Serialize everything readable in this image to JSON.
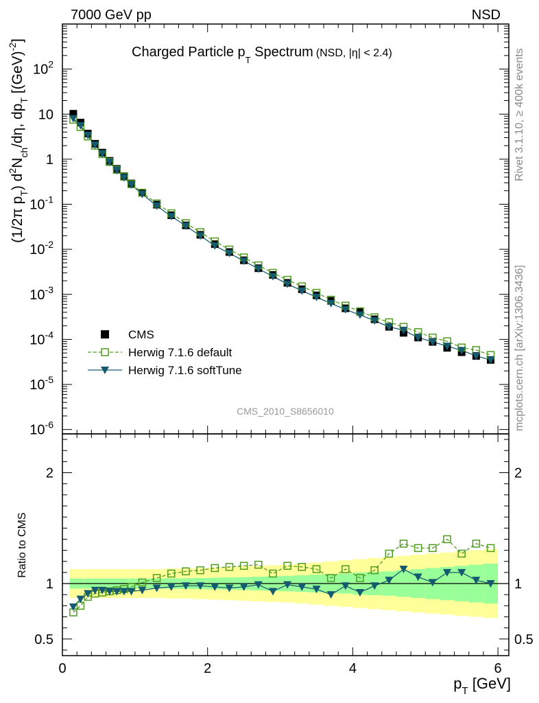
{
  "header": {
    "left": "7000 GeV pp",
    "right": "NSD"
  },
  "title": {
    "main": "Charged Particle p",
    "main_sub": "T",
    "main_tail": " Spectrum",
    "qualifier": "(NSD, |η| < 2.4)"
  },
  "side_labels": {
    "rivet": "Rivet 3.1.10, ≥ 400k events",
    "mcplots": "mcplots.cern.ch [arXiv:1306.3436]"
  },
  "analysis_id": "CMS_2010_S8656010",
  "colors": {
    "cms": "#000000",
    "herwig_default": "#4f9a1f",
    "herwig_softtune": "#165a70",
    "band_inner": "#99ff99",
    "band_outer": "#ffff99"
  },
  "chart_data": [
    {
      "type": "scatter",
      "panel": "main",
      "ylabel": "(1/2π p_T) d²N_ch/dη, dp_T [(GeV)⁻²]",
      "ylabel_parts": [
        "(1/2π p",
        "T",
        ") d",
        "2",
        "N",
        "ch",
        "/dη, dp",
        "T",
        " [(GeV)",
        "-2",
        "]"
      ],
      "xlabel": "",
      "yscale": "log",
      "xlim": [
        0,
        6.15
      ],
      "ylim": [
        8e-07,
        1000
      ],
      "y_ticks": [
        {
          "v": 1e-06,
          "label": "10",
          "exp": "-6"
        },
        {
          "v": 1e-05,
          "label": "10",
          "exp": "-5"
        },
        {
          "v": 0.0001,
          "label": "10",
          "exp": "-4"
        },
        {
          "v": 0.001,
          "label": "10",
          "exp": "-3"
        },
        {
          "v": 0.01,
          "label": "10",
          "exp": "-2"
        },
        {
          "v": 0.1,
          "label": "10",
          "exp": "-1"
        },
        {
          "v": 1,
          "label": "1",
          "exp": ""
        },
        {
          "v": 10,
          "label": "10",
          "exp": ""
        },
        {
          "v": 100,
          "label": "10",
          "exp": "2"
        }
      ],
      "legend": {
        "position": "bottom-left",
        "entries": [
          "CMS",
          "Herwig 7.1.6 default",
          "Herwig 7.1.6 softTune"
        ]
      },
      "x": [
        0.15,
        0.25,
        0.35,
        0.45,
        0.55,
        0.65,
        0.75,
        0.85,
        0.95,
        1.1,
        1.3,
        1.5,
        1.7,
        1.9,
        2.1,
        2.3,
        2.5,
        2.7,
        2.9,
        3.1,
        3.3,
        3.5,
        3.7,
        3.9,
        4.1,
        4.3,
        4.5,
        4.7,
        4.9,
        5.1,
        5.3,
        5.5,
        5.7,
        5.9
      ],
      "series": [
        {
          "name": "CMS",
          "marker": "filled-square",
          "values": [
            10.2,
            6.5,
            3.7,
            2.2,
            1.4,
            0.92,
            0.61,
            0.42,
            0.29,
            0.18,
            0.098,
            0.057,
            0.034,
            0.021,
            0.013,
            0.0087,
            0.0057,
            0.0038,
            0.0027,
            0.0018,
            0.0013,
            0.00095,
            0.00072,
            0.00049,
            0.00041,
            0.00028,
            0.00019,
            0.00014,
            0.00011,
            8.8e-05,
            6.5e-05,
            5.2e-05,
            4.3e-05,
            3.5e-05
          ]
        },
        {
          "name": "Herwig 7.1.6 default",
          "marker": "open-square",
          "line": "dashed",
          "values": [
            7.5,
            5.2,
            3.2,
            2.0,
            1.3,
            0.87,
            0.58,
            0.41,
            0.28,
            0.18,
            0.104,
            0.063,
            0.038,
            0.024,
            0.015,
            0.0099,
            0.0066,
            0.0044,
            0.003,
            0.0021,
            0.0015,
            0.00108,
            0.00076,
            0.00056,
            0.00042,
            0.00031,
            0.00024,
            0.00019,
            0.000145,
            0.00011,
            9.1e-05,
            6.6e-05,
            5.8e-05,
            4.5e-05
          ]
        },
        {
          "name": "Herwig 7.1.6 softTune",
          "marker": "filled-triangle-down",
          "line": "solid",
          "values": [
            8.0,
            5.6,
            3.4,
            2.07,
            1.32,
            0.86,
            0.57,
            0.39,
            0.27,
            0.168,
            0.092,
            0.054,
            0.033,
            0.02,
            0.012,
            0.0082,
            0.0055,
            0.0037,
            0.0025,
            0.0017,
            0.0012,
            0.00087,
            0.00063,
            0.00046,
            0.00035,
            0.00026,
            0.00019,
            0.00016,
            0.00011,
            8.8e-05,
            7.1e-05,
            5.7e-05,
            4.3e-05,
            3.5e-05
          ]
        }
      ]
    },
    {
      "type": "line",
      "panel": "ratio",
      "ylabel": "Ratio to CMS",
      "xlabel": "p_T [GeV]",
      "xlabel_main": "p",
      "xlabel_sub": "T",
      "xlabel_tail": " [GeV]",
      "ylim": [
        0.35,
        2.35
      ],
      "xlim": [
        0,
        6.15
      ],
      "x_ticks": [
        0,
        2,
        4,
        6
      ],
      "y_ticks": [
        0.5,
        1,
        2
      ],
      "reference": 1,
      "x": [
        0.15,
        0.25,
        0.35,
        0.45,
        0.55,
        0.65,
        0.75,
        0.85,
        0.95,
        1.1,
        1.3,
        1.5,
        1.7,
        1.9,
        2.1,
        2.3,
        2.5,
        2.7,
        2.9,
        3.1,
        3.3,
        3.5,
        3.7,
        3.9,
        4.1,
        4.3,
        4.5,
        4.7,
        4.9,
        5.1,
        5.3,
        5.5,
        5.7,
        5.9
      ],
      "band": {
        "x_edges": [
          0.1,
          0.2,
          0.3,
          0.4,
          0.5,
          0.6,
          0.7,
          0.8,
          0.9,
          1.0,
          1.2,
          1.4,
          1.6,
          1.8,
          2.0,
          2.2,
          2.4,
          2.6,
          2.8,
          3.0,
          3.2,
          3.4,
          3.6,
          3.8,
          4.0,
          4.2,
          4.4,
          4.6,
          4.8,
          5.0,
          5.2,
          5.4,
          5.6,
          5.8,
          6.0
        ],
        "inner": [
          0.045,
          0.045,
          0.045,
          0.045,
          0.045,
          0.045,
          0.045,
          0.045,
          0.045,
          0.045,
          0.045,
          0.047,
          0.048,
          0.05,
          0.052,
          0.055,
          0.058,
          0.062,
          0.066,
          0.07,
          0.075,
          0.08,
          0.085,
          0.09,
          0.1,
          0.105,
          0.11,
          0.12,
          0.13,
          0.14,
          0.15,
          0.16,
          0.17,
          0.18
        ],
        "outer": [
          0.13,
          0.13,
          0.13,
          0.13,
          0.13,
          0.13,
          0.13,
          0.13,
          0.13,
          0.13,
          0.13,
          0.135,
          0.135,
          0.14,
          0.145,
          0.15,
          0.155,
          0.16,
          0.165,
          0.17,
          0.18,
          0.19,
          0.2,
          0.21,
          0.22,
          0.23,
          0.24,
          0.25,
          0.26,
          0.27,
          0.28,
          0.29,
          0.3,
          0.31
        ]
      },
      "series": [
        {
          "name": "Herwig 7.1.6 default",
          "values": [
            0.74,
            0.8,
            0.88,
            0.91,
            0.92,
            0.93,
            0.94,
            0.95,
            0.97,
            1.01,
            1.05,
            1.09,
            1.11,
            1.12,
            1.14,
            1.15,
            1.16,
            1.17,
            1.09,
            1.16,
            1.15,
            1.13,
            1.05,
            1.13,
            1.05,
            1.12,
            1.27,
            1.36,
            1.32,
            1.32,
            1.4,
            1.27,
            1.36,
            1.32
          ]
        },
        {
          "name": "Herwig 7.1.6 softTune",
          "values": [
            0.79,
            0.86,
            0.91,
            0.94,
            0.94,
            0.93,
            0.93,
            0.93,
            0.93,
            0.94,
            0.96,
            0.97,
            0.98,
            0.98,
            0.97,
            0.96,
            0.97,
            0.99,
            0.93,
            0.99,
            0.97,
            0.95,
            0.9,
            0.98,
            0.92,
            0.98,
            1.03,
            1.13,
            1.06,
            1.01,
            1.1,
            1.1,
            1.03,
            1.0
          ]
        }
      ]
    }
  ]
}
